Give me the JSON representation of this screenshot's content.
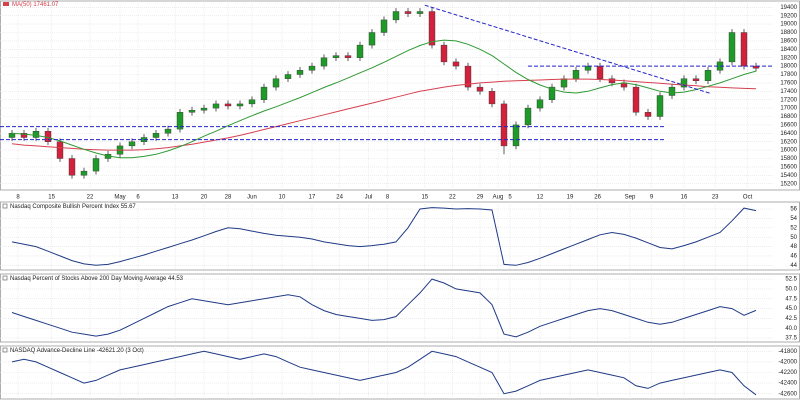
{
  "chart_data": [
    {
      "type": "candlestick",
      "xlim": [
        -1,
        63.5
      ],
      "ylim": [
        15050,
        19550
      ],
      "up_color": "#1e9a28",
      "down_color": "#d2213c",
      "open": [
        16300,
        16400,
        16300,
        16450,
        16200,
        15800,
        15400,
        15500,
        15800,
        15900,
        16100,
        16200,
        16300,
        16400,
        16500,
        16900,
        16950,
        17000,
        17100,
        17050,
        17100,
        17200,
        17500,
        17700,
        17800,
        17900,
        18000,
        18200,
        18250,
        18200,
        18500,
        18800,
        19100,
        19300,
        19250,
        19300,
        18500,
        18100,
        18000,
        17500,
        17400,
        17100,
        16100,
        16600,
        17000,
        17200,
        17500,
        17700,
        17900,
        18000,
        17700,
        17600,
        17500,
        16900,
        16800,
        17300,
        17500,
        17700,
        17650,
        17900,
        18100,
        18800,
        18000
      ],
      "high": [
        16480,
        16480,
        16530,
        16530,
        16280,
        15880,
        15580,
        15880,
        15980,
        16180,
        16280,
        16380,
        16480,
        16580,
        16980,
        17030,
        17080,
        17180,
        17180,
        17180,
        17280,
        17580,
        17780,
        17880,
        17980,
        18080,
        18280,
        18330,
        18330,
        18580,
        18880,
        19180,
        19380,
        19380,
        19380,
        19380,
        18580,
        18180,
        18080,
        17580,
        17480,
        17180,
        16680,
        17080,
        17280,
        17580,
        17780,
        17980,
        18080,
        18080,
        17780,
        17680,
        17580,
        16980,
        17380,
        17580,
        17780,
        17780,
        17980,
        18180,
        18880,
        18880,
        18080
      ],
      "low": [
        16220,
        16220,
        16220,
        16120,
        15720,
        15320,
        15320,
        15420,
        15720,
        15820,
        16020,
        16120,
        16220,
        16320,
        16420,
        16820,
        16870,
        16920,
        16970,
        16970,
        17020,
        17120,
        17420,
        17620,
        17720,
        17820,
        17920,
        18120,
        18120,
        18120,
        18420,
        18720,
        19020,
        19170,
        19170,
        18420,
        18020,
        17920,
        17420,
        17320,
        17020,
        15900,
        16020,
        16520,
        16920,
        17120,
        17420,
        17620,
        17820,
        17620,
        17520,
        17420,
        16820,
        16720,
        16720,
        17220,
        17420,
        17570,
        17570,
        17820,
        18020,
        17920,
        17870
      ],
      "close": [
        16400,
        16300,
        16450,
        16200,
        15800,
        15400,
        15500,
        15800,
        15900,
        16100,
        16200,
        16300,
        16400,
        16500,
        16900,
        16950,
        17000,
        17100,
        17050,
        17100,
        17200,
        17500,
        17700,
        17800,
        17900,
        18000,
        18200,
        18250,
        18200,
        18500,
        18800,
        19100,
        19300,
        19250,
        19300,
        18500,
        18100,
        18000,
        17500,
        17400,
        17100,
        16100,
        16600,
        17000,
        17200,
        17500,
        17700,
        17900,
        18000,
        17700,
        17600,
        17500,
        16900,
        16800,
        17300,
        17500,
        17700,
        17650,
        17900,
        18100,
        18800,
        18000,
        17950
      ],
      "series": [
        {
          "name": "MA(50) 17461.07",
          "color": "#d6404f",
          "values": [
            16150,
            16120,
            16100,
            16080,
            16060,
            16040,
            16020,
            16010,
            16000,
            16000,
            16000,
            16010,
            16030,
            16060,
            16100,
            16140,
            16190,
            16240,
            16290,
            16350,
            16420,
            16490,
            16560,
            16630,
            16700,
            16770,
            16840,
            16910,
            16980,
            17050,
            17120,
            17190,
            17260,
            17330,
            17400,
            17450,
            17500,
            17540,
            17570,
            17600,
            17620,
            17640,
            17650,
            17660,
            17670,
            17680,
            17690,
            17690,
            17690,
            17680,
            17670,
            17650,
            17630,
            17610,
            17590,
            17570,
            17550,
            17530,
            17510,
            17495,
            17480,
            17470,
            17461.07
          ]
        },
        {
          "color": "#2e9a33",
          "values": [
            16400,
            16380,
            16350,
            16300,
            16220,
            16120,
            16020,
            15930,
            15860,
            15820,
            15820,
            15850,
            15900,
            15980,
            16080,
            16200,
            16330,
            16450,
            16580,
            16700,
            16820,
            16930,
            17030,
            17140,
            17250,
            17370,
            17490,
            17600,
            17720,
            17840,
            17960,
            18090,
            18230,
            18370,
            18490,
            18580,
            18620,
            18600,
            18520,
            18400,
            18250,
            18050,
            17850,
            17680,
            17550,
            17450,
            17380,
            17360,
            17400,
            17480,
            17560,
            17600,
            17560,
            17480,
            17400,
            17360,
            17380,
            17440,
            17520,
            17600,
            17700,
            17800,
            17880
          ]
        }
      ],
      "trend_lines": {
        "color": "#2424c8",
        "lines": [
          {
            "x": [
              -1,
              54.4
            ],
            "y": [
              16560,
              16560
            ]
          },
          {
            "x": [
              -1,
              54.4
            ],
            "y": [
              16250,
              16250
            ]
          },
          {
            "x": [
              43,
              63.5
            ],
            "y": [
              18000,
              18000
            ]
          },
          {
            "x": [
              34.4,
              58.2
            ],
            "y": [
              19450,
              17350
            ]
          }
        ]
      },
      "xticks": [
        {
          "value": 0.5,
          "label": "8"
        },
        {
          "value": 3.3,
          "label": "15"
        },
        {
          "value": 6.5,
          "label": "22"
        },
        {
          "value": 9,
          "label": "May"
        },
        {
          "value": 10.5,
          "label": "6"
        },
        {
          "value": 13.6,
          "label": "13"
        },
        {
          "value": 16,
          "label": "20"
        },
        {
          "value": 18,
          "label": "28"
        },
        {
          "value": 20,
          "label": "Jun"
        },
        {
          "value": 22.5,
          "label": "10"
        },
        {
          "value": 25,
          "label": "17"
        },
        {
          "value": 27.3,
          "label": "24"
        },
        {
          "value": 29.7,
          "label": "Jul"
        },
        {
          "value": 31.3,
          "label": "8"
        },
        {
          "value": 34.4,
          "label": "15"
        },
        {
          "value": 36.7,
          "label": "22"
        },
        {
          "value": 39,
          "label": "29"
        },
        {
          "value": 40.5,
          "label": "Aug"
        },
        {
          "value": 41.5,
          "label": "5"
        },
        {
          "value": 44,
          "label": "12"
        },
        {
          "value": 46.5,
          "label": "19"
        },
        {
          "value": 48.8,
          "label": "26"
        },
        {
          "value": 51.5,
          "label": "Sep"
        },
        {
          "value": 53.3,
          "label": "9"
        },
        {
          "value": 56,
          "label": "16"
        },
        {
          "value": 58.6,
          "label": "23"
        },
        {
          "value": 61.3,
          "label": "Oct"
        }
      ],
      "yticks": [
        15200,
        15400,
        15600,
        15800,
        16000,
        16200,
        16400,
        16600,
        16800,
        17000,
        17200,
        17400,
        17600,
        17800,
        18000,
        18200,
        18400,
        18600,
        18800,
        19000,
        19200,
        19400
      ],
      "grid": true
    },
    {
      "type": "line",
      "title": "Nasdaq Composite Bullish Percent Index 55.67",
      "color": "#1f3a86",
      "values": [
        49,
        48.5,
        48,
        47,
        46,
        45,
        44.3,
        44,
        44.2,
        44.8,
        45.5,
        46.2,
        47,
        47.8,
        48.6,
        49.4,
        50.3,
        51.2,
        52,
        51.8,
        51.3,
        50.8,
        50.4,
        50.2,
        50,
        49.6,
        49,
        48.6,
        48.2,
        48,
        48.2,
        48.5,
        49,
        52,
        56,
        56.3,
        56.2,
        56,
        56.1,
        56,
        55.8,
        44.2,
        44,
        44.6,
        45.5,
        46.5,
        47.5,
        48.5,
        49.5,
        50.5,
        51,
        50.6,
        49.8,
        48.8,
        47.8,
        47.5,
        48.2,
        49,
        50,
        51,
        53.5,
        56.2,
        55.67
      ],
      "ylim": [
        43,
        57.5
      ],
      "yticks": [
        44,
        46,
        48,
        50,
        52,
        54,
        56
      ],
      "grid": true
    },
    {
      "type": "line",
      "title": "Nasdaq Percent of Stocks Above 200 Day Moving Average 44.53",
      "color": "#1f3a86",
      "values": [
        44,
        43,
        42,
        41,
        40,
        39,
        38.5,
        38,
        38.5,
        39.5,
        41,
        42.5,
        44,
        45.5,
        46.5,
        47.5,
        47,
        46.5,
        46,
        46.5,
        47,
        47.5,
        48,
        48.5,
        48,
        46,
        44.5,
        43.5,
        43,
        42.5,
        42,
        42.2,
        43,
        46,
        49,
        52.5,
        51.5,
        50,
        49.5,
        49,
        46,
        38.5,
        37.8,
        39,
        40.5,
        41.5,
        42.5,
        43.5,
        44.5,
        45,
        44.5,
        43.5,
        42.5,
        41.5,
        41,
        41.5,
        42.5,
        43.5,
        44.5,
        45.5,
        45,
        43.3,
        44.53
      ],
      "ylim": [
        36.5,
        53.8
      ],
      "yticks": [
        37.5,
        {
          "value": 40,
          "label": "40.0"
        },
        42.5,
        {
          "value": 45,
          "label": "45.0"
        },
        47.5,
        {
          "value": 50,
          "label": "50.0"
        },
        52.5
      ],
      "grid": true
    },
    {
      "type": "line",
      "title": "NASDAQ Advance-Decline Line -42621.20 (3 Oct)",
      "color": "#1f3a86",
      "values": [
        -42000,
        -41950,
        -42000,
        -42100,
        -42200,
        -42300,
        -42400,
        -42350,
        -42250,
        -42150,
        -42100,
        -42050,
        -42000,
        -41950,
        -41900,
        -41850,
        -41800,
        -41850,
        -41900,
        -41950,
        -41900,
        -41850,
        -41900,
        -42000,
        -42100,
        -42150,
        -42200,
        -42250,
        -42300,
        -42350,
        -42300,
        -42250,
        -42200,
        -42100,
        -41950,
        -41800,
        -41850,
        -41900,
        -42000,
        -42100,
        -42200,
        -42600,
        -42550,
        -42450,
        -42350,
        -42300,
        -42250,
        -42200,
        -42150,
        -42200,
        -42250,
        -42300,
        -42450,
        -42500,
        -42400,
        -42350,
        -42300,
        -42250,
        -42200,
        -42150,
        -42200,
        -42450,
        -42621.2
      ],
      "ylim": [
        -42700,
        -41700
      ],
      "yticks": [
        -41800,
        -42000,
        -42200,
        -42400,
        -42600
      ],
      "grid": true
    }
  ]
}
